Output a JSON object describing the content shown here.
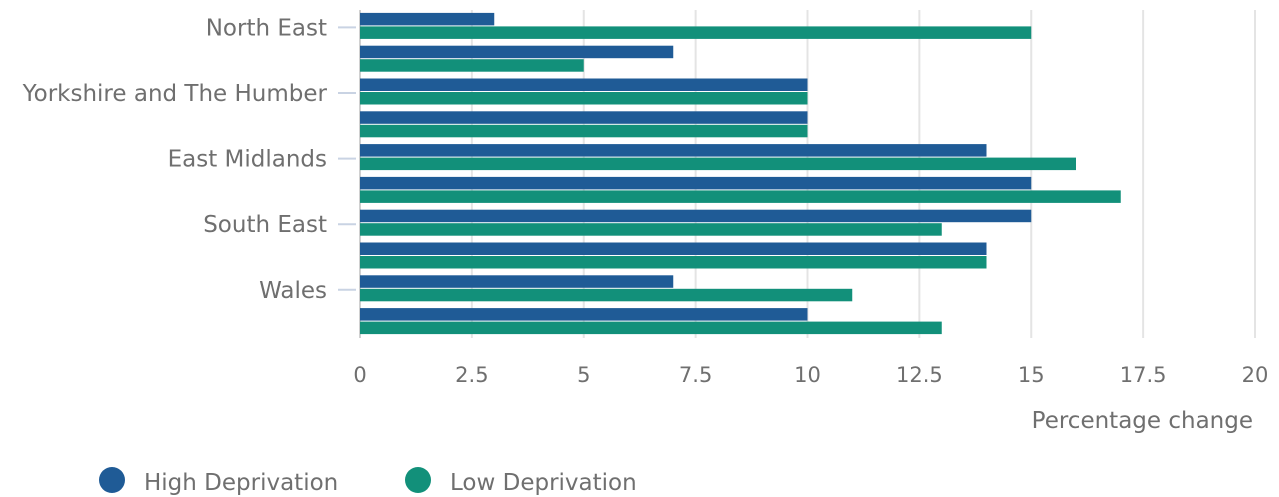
{
  "chart_data": {
    "type": "bar",
    "orientation": "horizontal",
    "categories": [
      "North East",
      "",
      "Yorkshire and The Humber",
      "",
      "East Midlands",
      "",
      "South East",
      "",
      "Wales",
      ""
    ],
    "series": [
      {
        "name": "High Deprivation",
        "color": "#1f5b96",
        "values": [
          3,
          7,
          10,
          10,
          14,
          15,
          15,
          14,
          7,
          10
        ]
      },
      {
        "name": "Low Deprivation",
        "color": "#12907a",
        "values": [
          15,
          5,
          10,
          10,
          16,
          17,
          13,
          14,
          11,
          13
        ]
      }
    ],
    "x_ticks": [
      "0",
      "2.5",
      "5",
      "7.5",
      "10",
      "12.5",
      "15",
      "17.5",
      "20"
    ],
    "xlim": [
      0,
      20
    ],
    "xlabel": "Percentage change",
    "grid": "vertical",
    "legend_position": "bottom-left"
  }
}
